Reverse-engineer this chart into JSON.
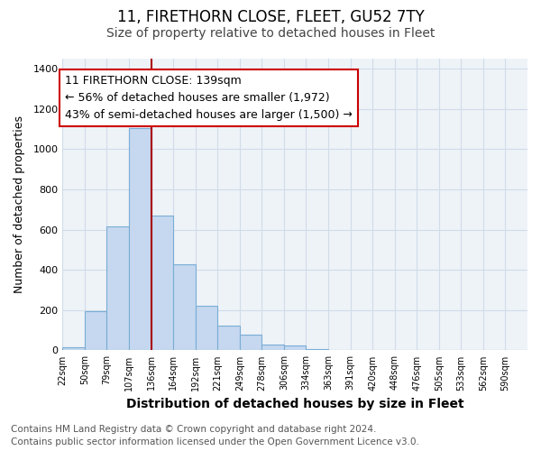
{
  "title": "11, FIRETHORN CLOSE, FLEET, GU52 7TY",
  "subtitle": "Size of property relative to detached houses in Fleet",
  "xlabel": "Distribution of detached houses by size in Fleet",
  "ylabel": "Number of detached properties",
  "bar_color": "#c5d8f0",
  "bar_edge_color": "#7aadd4",
  "bin_labels": [
    "22sqm",
    "50sqm",
    "79sqm",
    "107sqm",
    "136sqm",
    "164sqm",
    "192sqm",
    "221sqm",
    "249sqm",
    "278sqm",
    "306sqm",
    "334sqm",
    "363sqm",
    "391sqm",
    "420sqm",
    "448sqm",
    "476sqm",
    "505sqm",
    "533sqm",
    "562sqm",
    "590sqm"
  ],
  "bar_heights": [
    15,
    193,
    614,
    1107,
    670,
    430,
    222,
    124,
    77,
    30,
    25,
    5,
    2,
    0,
    0,
    1,
    0,
    0,
    0,
    0,
    0
  ],
  "ylim": [
    0,
    1450
  ],
  "yticks": [
    0,
    200,
    400,
    600,
    800,
    1000,
    1200,
    1400
  ],
  "vline_x_bin": 4,
  "vline_color": "#aa0000",
  "annotation_text": "11 FIRETHORN CLOSE: 139sqm\n← 56% of detached houses are smaller (1,972)\n43% of semi-detached houses are larger (1,500) →",
  "annotation_box_color": "#ffffff",
  "annotation_box_edge_color": "#cc0000",
  "footer_line1": "Contains HM Land Registry data © Crown copyright and database right 2024.",
  "footer_line2": "Contains public sector information licensed under the Open Government Licence v3.0.",
  "title_fontsize": 12,
  "subtitle_fontsize": 10,
  "xlabel_fontsize": 10,
  "ylabel_fontsize": 9,
  "annotation_fontsize": 9,
  "footer_fontsize": 7.5,
  "grid_color": "#d0dce8",
  "background_color": "#eef3f8"
}
